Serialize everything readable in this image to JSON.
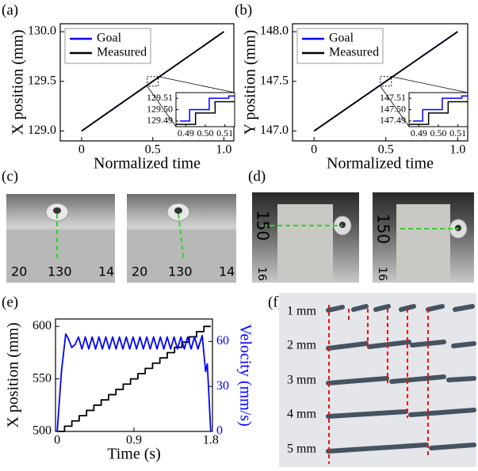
{
  "panel_labels": [
    "(a)",
    "(b)",
    "(c)",
    "(d)",
    "(e)",
    "(f)"
  ],
  "chart_data": [
    {
      "type": "line",
      "x_label": "Normalized time",
      "y_label": "X position (mm)",
      "xlim": [
        -0.15,
        1.07
      ],
      "xticks": [
        0,
        0.5,
        {
          "value": 1,
          "label": "1.0"
        }
      ],
      "ylim": [
        128.9,
        130.08
      ],
      "yticks": [
        {
          "value": 129,
          "label": "129.0"
        },
        129.5,
        {
          "value": 130,
          "label": "130.0"
        }
      ],
      "legend": "upper left",
      "series": [
        {
          "name": "Goal",
          "color": "#0000ff",
          "x": [
            0,
            0.5,
            1
          ],
          "values": [
            129,
            129.5,
            130
          ]
        },
        {
          "name": "Measured",
          "color": "#000000",
          "x": [
            0,
            0.5,
            1
          ],
          "values": [
            129,
            129.5,
            130
          ]
        }
      ],
      "inset": {
        "xlim": [
          0.485,
          0.515
        ],
        "xticks": [
          0.49,
          {
            "value": 0.5,
            "label": "0.50"
          },
          0.51
        ],
        "ylim": [
          129.485,
          129.515
        ],
        "yticks": [
          129.49,
          {
            "value": 129.5,
            "label": "129.50"
          },
          129.51
        ],
        "series": [
          {
            "x": [
              0.487,
              0.492,
              0.492,
              0.502,
              0.502,
              0.512,
              0.512,
              0.515
            ],
            "values": [
              129.49,
              129.49,
              129.5,
              129.5,
              129.51,
              129.51,
              129.512,
              129.512
            ]
          },
          {
            "x": [
              0.485,
              0.495,
              0.495,
              0.505,
              0.505,
              0.515
            ],
            "values": [
              129.487,
              129.487,
              129.497,
              129.497,
              129.507,
              129.507
            ]
          }
        ]
      }
    },
    {
      "type": "line",
      "x_label": "Normalized time",
      "y_label": "Y position (mm)",
      "xlim": [
        -0.15,
        1.07
      ],
      "xticks": [
        0,
        0.5,
        {
          "value": 1,
          "label": "1.0"
        }
      ],
      "ylim": [
        146.9,
        148.08
      ],
      "yticks": [
        {
          "value": 147,
          "label": "147.0"
        },
        147.5,
        {
          "value": 148,
          "label": "148.0"
        }
      ],
      "legend": "upper left",
      "series": [
        {
          "name": "Goal",
          "color": "#0000ff",
          "x": [
            0,
            0.5,
            1
          ],
          "values": [
            147,
            147.5,
            148
          ]
        },
        {
          "name": "Measured",
          "color": "#000000",
          "x": [
            0,
            0.5,
            1
          ],
          "values": [
            147,
            147.5,
            148
          ]
        }
      ],
      "inset": {
        "xlim": [
          0.485,
          0.515
        ],
        "xticks": [
          0.49,
          {
            "value": 0.5,
            "label": "0.50"
          },
          0.51
        ],
        "ylim": [
          147.485,
          147.515
        ],
        "yticks": [
          147.49,
          {
            "value": 147.5,
            "label": "147.50"
          },
          147.51
        ],
        "series": [
          {
            "x": [
              0.487,
              0.492,
              0.492,
              0.502,
              0.502,
              0.512,
              0.512,
              0.515
            ],
            "values": [
              147.49,
              147.49,
              147.5,
              147.5,
              147.51,
              147.51,
              147.512,
              147.512
            ]
          },
          {
            "x": [
              0.485,
              0.495,
              0.495,
              0.505,
              0.505,
              0.515
            ],
            "values": [
              147.487,
              147.487,
              147.497,
              147.497,
              147.507,
              147.507
            ]
          }
        ]
      }
    },
    {
      "type": "line",
      "x_label": "Time (s)",
      "y_label": "X position (mm)",
      "y2_label": "Velocity (mm/s)",
      "xlim": [
        -0.02,
        1.82
      ],
      "xticks": [
        0,
        0.9,
        1.8
      ],
      "ylim": [
        500,
        607
      ],
      "yticks": [
        500,
        550,
        600
      ],
      "y2lim": [
        0,
        75
      ],
      "y2ticks": [
        0,
        30,
        60
      ],
      "series": [
        {
          "color": "#000000",
          "x": [
            0,
            0.086,
            0.086,
            0.172,
            0.172,
            0.258,
            0.258,
            0.344,
            0.344,
            0.43,
            0.43,
            0.516,
            0.516,
            0.602,
            0.602,
            0.688,
            0.688,
            0.774,
            0.774,
            0.86,
            0.86,
            0.946,
            0.946,
            1.032,
            1.032,
            1.118,
            1.118,
            1.204,
            1.204,
            1.29,
            1.29,
            1.376,
            1.376,
            1.462,
            1.462,
            1.548,
            1.548,
            1.634,
            1.634,
            1.72,
            1.72,
            1.8
          ],
          "values": [
            500,
            500,
            505,
            505,
            510,
            510,
            515,
            515,
            520,
            520,
            525,
            525,
            530,
            530,
            535,
            535,
            540,
            540,
            545,
            545,
            550,
            550,
            555,
            555,
            560,
            560,
            565,
            565,
            570,
            570,
            575,
            575,
            580,
            580,
            585,
            585,
            590,
            590,
            595,
            595,
            600,
            600
          ]
        },
        {
          "color": "#0000ff",
          "axis": "y2",
          "x": [
            0,
            0.05,
            0.1,
            0.13,
            0.17,
            0.21,
            0.25,
            0.29,
            0.33,
            0.37,
            0.41,
            0.45,
            0.49,
            0.53,
            0.57,
            0.61,
            0.65,
            0.69,
            0.73,
            0.77,
            0.81,
            0.85,
            0.89,
            0.93,
            0.97,
            1.01,
            1.05,
            1.09,
            1.13,
            1.17,
            1.21,
            1.25,
            1.29,
            1.33,
            1.37,
            1.41,
            1.45,
            1.49,
            1.53,
            1.57,
            1.61,
            1.65,
            1.7,
            1.74,
            1.76,
            1.8
          ],
          "values": [
            0,
            40,
            65,
            62,
            56,
            58,
            63,
            55,
            63,
            55,
            63,
            55,
            63,
            55,
            63,
            55,
            63,
            55,
            63,
            55,
            63,
            55,
            63,
            55,
            63,
            55,
            63,
            55,
            63,
            55,
            63,
            55,
            63,
            55,
            63,
            55,
            63,
            55,
            63,
            55,
            63,
            55,
            64,
            40,
            45,
            0
          ]
        }
      ]
    }
  ],
  "photos": {
    "c": {
      "ruler_labels": [
        "20",
        "130",
        "14"
      ]
    },
    "d": {
      "ruler_labels": [
        "150",
        "16"
      ]
    }
  },
  "panel_f": {
    "labels": [
      "1 mm",
      "2 mm",
      "3 mm",
      "4 mm",
      "5 mm"
    ]
  }
}
